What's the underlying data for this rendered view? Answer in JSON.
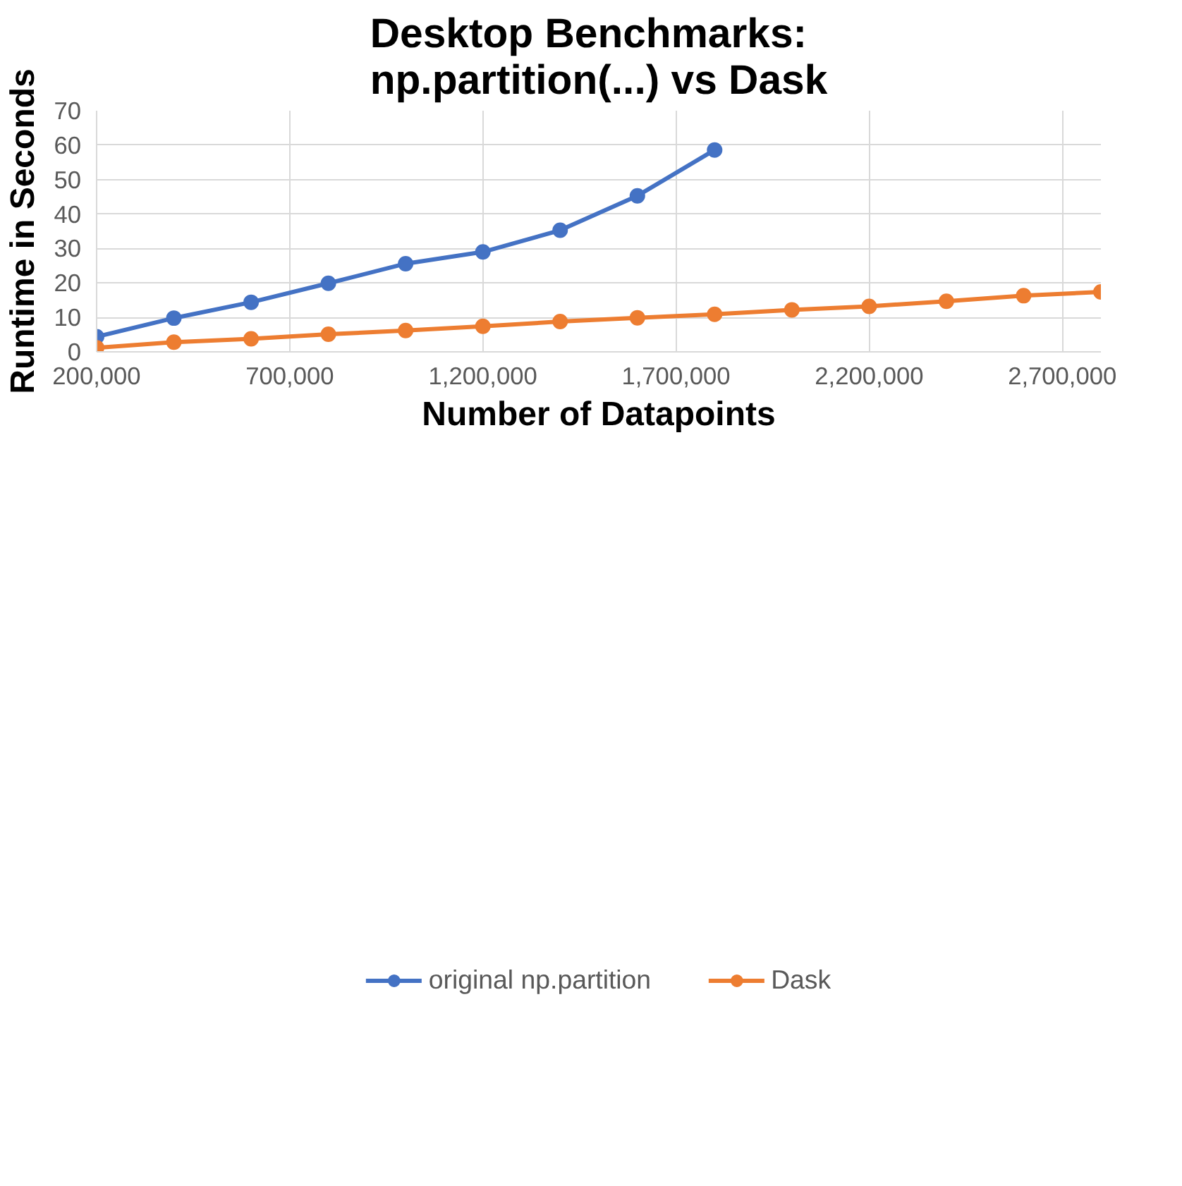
{
  "chart_data": {
    "type": "line",
    "title": "Desktop Benchmarks:\nnp.partition(...) vs Dask",
    "xlabel": "Number of Datapoints",
    "ylabel": "Runtime in Seconds",
    "xlim": [
      200000,
      2800000
    ],
    "xticks": [
      {
        "value": 200000,
        "label": "200,000"
      },
      {
        "value": 700000,
        "label": "700,000"
      },
      {
        "value": 1200000,
        "label": "1,200,000"
      },
      {
        "value": 1700000,
        "label": "1,700,000"
      },
      {
        "value": 2200000,
        "label": "2,200,000"
      },
      {
        "value": 2700000,
        "label": "2,700,000"
      }
    ],
    "ylim": [
      0,
      70
    ],
    "yticks": [
      0,
      10,
      20,
      30,
      40,
      50,
      60,
      70
    ],
    "grid": true,
    "legend": "bottom",
    "marker": "circle",
    "line_style": "solid",
    "series": [
      {
        "name": "original np.partition",
        "color": "#4472c4",
        "x": [
          200000,
          400000,
          600000,
          800000,
          1000000,
          1200000,
          1400000,
          1600000,
          1800000
        ],
        "values": [
          4.4,
          9.8,
          14.4,
          19.9,
          25.6,
          29.0,
          35.3,
          45.3,
          58.6
        ]
      },
      {
        "name": "Dask",
        "color": "#ed7d31",
        "x": [
          200000,
          400000,
          600000,
          800000,
          1000000,
          1200000,
          1400000,
          1600000,
          1800000,
          2000000,
          2200000,
          2400000,
          2600000,
          2800000
        ],
        "values": [
          1.2,
          2.8,
          3.8,
          5.1,
          6.2,
          7.4,
          8.8,
          9.9,
          10.9,
          12.2,
          13.2,
          14.7,
          16.3,
          17.4
        ]
      }
    ]
  }
}
